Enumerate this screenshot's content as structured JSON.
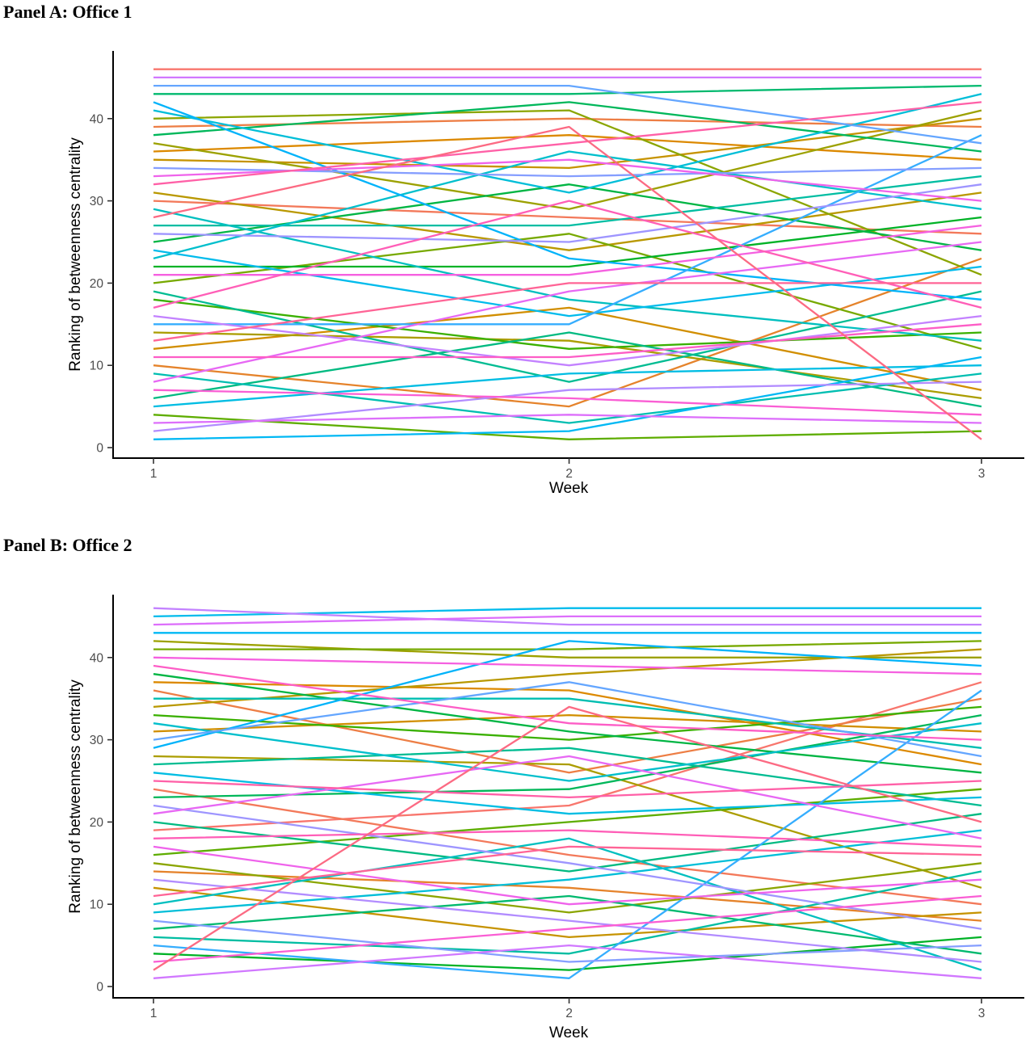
{
  "figure": {
    "background": "#ffffff",
    "axis_color": "#000000",
    "tick_label_color": "#4d4d4d"
  },
  "chart_data": [
    {
      "type": "line",
      "title": "Panel A: Office 1",
      "xlabel": "Week",
      "ylabel": "Ranking of betweenness centrality",
      "x": [
        1,
        2,
        3
      ],
      "x_ticks": [
        "1",
        "2",
        "3"
      ],
      "y_ticks": [
        0,
        10,
        20,
        30,
        40
      ],
      "ylim": [
        -1.3,
        48.3
      ],
      "grid": false,
      "legend": "none",
      "series": [
        {
          "color": "#F8766D",
          "values": [
            46,
            46,
            46
          ]
        },
        {
          "color": "#F3795A",
          "values": [
            30,
            28,
            26
          ]
        },
        {
          "color": "#ED7E45",
          "values": [
            39,
            40,
            39
          ]
        },
        {
          "color": "#E5832B",
          "values": [
            10,
            5,
            23
          ]
        },
        {
          "color": "#DC8900",
          "values": [
            36,
            38,
            35
          ]
        },
        {
          "color": "#D18E00",
          "values": [
            12,
            17,
            7
          ]
        },
        {
          "color": "#C69300",
          "values": [
            35,
            34,
            40
          ]
        },
        {
          "color": "#B99800",
          "values": [
            31,
            24,
            31
          ]
        },
        {
          "color": "#AB9D00",
          "values": [
            14,
            13,
            6
          ]
        },
        {
          "color": "#9CA100",
          "values": [
            37,
            29,
            41
          ]
        },
        {
          "color": "#8BA500",
          "values": [
            40,
            41,
            21
          ]
        },
        {
          "color": "#77A900",
          "values": [
            20,
            26,
            12
          ]
        },
        {
          "color": "#5EAD00",
          "values": [
            4,
            1,
            2
          ]
        },
        {
          "color": "#3AB000",
          "values": [
            18,
            12,
            14
          ]
        },
        {
          "color": "#00B226",
          "values": [
            22,
            22,
            28
          ]
        },
        {
          "color": "#00B543",
          "values": [
            25,
            32,
            24
          ]
        },
        {
          "color": "#00B75A",
          "values": [
            38,
            42,
            36
          ]
        },
        {
          "color": "#00B96E",
          "values": [
            43,
            43,
            44
          ]
        },
        {
          "color": "#00BA81",
          "values": [
            6,
            14,
            5
          ]
        },
        {
          "color": "#00BC92",
          "values": [
            19,
            8,
            19
          ]
        },
        {
          "color": "#00BDA2",
          "values": [
            27,
            27,
            33
          ]
        },
        {
          "color": "#00BEB1",
          "values": [
            9,
            3,
            9
          ]
        },
        {
          "color": "#00BFBF",
          "values": [
            29,
            18,
            13
          ]
        },
        {
          "color": "#00BFCC",
          "values": [
            23,
            36,
            29
          ]
        },
        {
          "color": "#00BED8",
          "values": [
            41,
            31,
            43
          ]
        },
        {
          "color": "#00BDE3",
          "values": [
            5,
            9,
            10
          ]
        },
        {
          "color": "#00BBEC",
          "values": [
            24,
            16,
            22
          ]
        },
        {
          "color": "#00B8F4",
          "values": [
            1,
            2,
            11
          ]
        },
        {
          "color": "#00B3FA",
          "values": [
            42,
            23,
            18
          ]
        },
        {
          "color": "#35ADFE",
          "values": [
            15,
            15,
            38
          ]
        },
        {
          "color": "#64A6FF",
          "values": [
            44,
            44,
            37
          ]
        },
        {
          "color": "#859EFF",
          "values": [
            34,
            33,
            34
          ]
        },
        {
          "color": "#9E95FF",
          "values": [
            26,
            25,
            32
          ]
        },
        {
          "color": "#B28CFF",
          "values": [
            2,
            7,
            8
          ]
        },
        {
          "color": "#C382FF",
          "values": [
            16,
            10,
            16
          ]
        },
        {
          "color": "#D178FF",
          "values": [
            45,
            45,
            45
          ]
        },
        {
          "color": "#DD6FFB",
          "values": [
            3,
            4,
            3
          ]
        },
        {
          "color": "#E768F4",
          "values": [
            8,
            19,
            25
          ]
        },
        {
          "color": "#EF63EB",
          "values": [
            33,
            35,
            30
          ]
        },
        {
          "color": "#F560E0",
          "values": [
            21,
            21,
            27
          ]
        },
        {
          "color": "#FA5ED4",
          "values": [
            7,
            6,
            4
          ]
        },
        {
          "color": "#FD5DC6",
          "values": [
            11,
            11,
            15
          ]
        },
        {
          "color": "#FF5EB7",
          "values": [
            17,
            30,
            17
          ]
        },
        {
          "color": "#FF60A7",
          "values": [
            32,
            37,
            42
          ]
        },
        {
          "color": "#FF6496",
          "values": [
            13,
            20,
            20
          ]
        },
        {
          "color": "#FC6A83",
          "values": [
            28,
            39,
            1
          ]
        }
      ]
    },
    {
      "type": "line",
      "title": "Panel B: Office 2",
      "xlabel": "Week",
      "ylabel": "Ranking of betweenness centrality",
      "x": [
        1,
        2,
        3
      ],
      "x_ticks": [
        "1",
        "2",
        "3"
      ],
      "y_ticks": [
        0,
        10,
        20,
        30,
        40
      ],
      "ylim": [
        -1.3,
        48.3
      ],
      "grid": false,
      "legend": "none",
      "series": [
        {
          "color": "#F8766D",
          "values": [
            19,
            22,
            37
          ]
        },
        {
          "color": "#F3795A",
          "values": [
            24,
            16,
            10
          ]
        },
        {
          "color": "#ED7E45",
          "values": [
            36,
            26,
            35
          ]
        },
        {
          "color": "#E5832B",
          "values": [
            14,
            12,
            8
          ]
        },
        {
          "color": "#DC8900",
          "values": [
            37,
            36,
            27
          ]
        },
        {
          "color": "#D18E00",
          "values": [
            31,
            33,
            31
          ]
        },
        {
          "color": "#C69300",
          "values": [
            12,
            6,
            9
          ]
        },
        {
          "color": "#B99800",
          "values": [
            34,
            38,
            41
          ]
        },
        {
          "color": "#AB9D00",
          "values": [
            28,
            27,
            12
          ]
        },
        {
          "color": "#9CA100",
          "values": [
            42,
            40,
            40
          ]
        },
        {
          "color": "#8BA500",
          "values": [
            15,
            9,
            15
          ]
        },
        {
          "color": "#77A900",
          "values": [
            41,
            41,
            42
          ]
        },
        {
          "color": "#5EAD00",
          "values": [
            16,
            20,
            24
          ]
        },
        {
          "color": "#3AB000",
          "values": [
            33,
            30,
            34
          ]
        },
        {
          "color": "#00B226",
          "values": [
            4,
            2,
            6
          ]
        },
        {
          "color": "#00B543",
          "values": [
            38,
            31,
            26
          ]
        },
        {
          "color": "#00B75A",
          "values": [
            23,
            24,
            33
          ]
        },
        {
          "color": "#00B96E",
          "values": [
            7,
            11,
            4
          ]
        },
        {
          "color": "#00BA81",
          "values": [
            20,
            14,
            21
          ]
        },
        {
          "color": "#00BC92",
          "values": [
            27,
            29,
            22
          ]
        },
        {
          "color": "#00BDA2",
          "values": [
            6,
            4,
            14
          ]
        },
        {
          "color": "#00BEB1",
          "values": [
            35,
            35,
            29
          ]
        },
        {
          "color": "#00BFBF",
          "values": [
            10,
            18,
            2
          ]
        },
        {
          "color": "#00BFCC",
          "values": [
            32,
            25,
            32
          ]
        },
        {
          "color": "#00BED8",
          "values": [
            9,
            13,
            19
          ]
        },
        {
          "color": "#00BDE3",
          "values": [
            26,
            21,
            23
          ]
        },
        {
          "color": "#00BBEC",
          "values": [
            45,
            46,
            46
          ]
        },
        {
          "color": "#00B8F4",
          "values": [
            43,
            43,
            43
          ]
        },
        {
          "color": "#00B3FA",
          "values": [
            29,
            42,
            39
          ]
        },
        {
          "color": "#35ADFE",
          "values": [
            5,
            1,
            36
          ]
        },
        {
          "color": "#64A6FF",
          "values": [
            30,
            37,
            28
          ]
        },
        {
          "color": "#859EFF",
          "values": [
            8,
            3,
            5
          ]
        },
        {
          "color": "#9E95FF",
          "values": [
            22,
            15,
            7
          ]
        },
        {
          "color": "#B28CFF",
          "values": [
            13,
            8,
            3
          ]
        },
        {
          "color": "#C382FF",
          "values": [
            46,
            44,
            44
          ]
        },
        {
          "color": "#D178FF",
          "values": [
            1,
            5,
            1
          ]
        },
        {
          "color": "#DD6FFB",
          "values": [
            44,
            45,
            45
          ]
        },
        {
          "color": "#E768F4",
          "values": [
            21,
            28,
            18
          ]
        },
        {
          "color": "#EF63EB",
          "values": [
            17,
            10,
            13
          ]
        },
        {
          "color": "#F560E0",
          "values": [
            40,
            39,
            38
          ]
        },
        {
          "color": "#FA5ED4",
          "values": [
            3,
            7,
            11
          ]
        },
        {
          "color": "#FD5DC6",
          "values": [
            39,
            32,
            30
          ]
        },
        {
          "color": "#FF5EB7",
          "values": [
            18,
            19,
            17
          ]
        },
        {
          "color": "#FF60A7",
          "values": [
            25,
            23,
            25
          ]
        },
        {
          "color": "#FF6496",
          "values": [
            11,
            17,
            16
          ]
        },
        {
          "color": "#FC6A83",
          "values": [
            2,
            34,
            20
          ]
        }
      ]
    }
  ]
}
